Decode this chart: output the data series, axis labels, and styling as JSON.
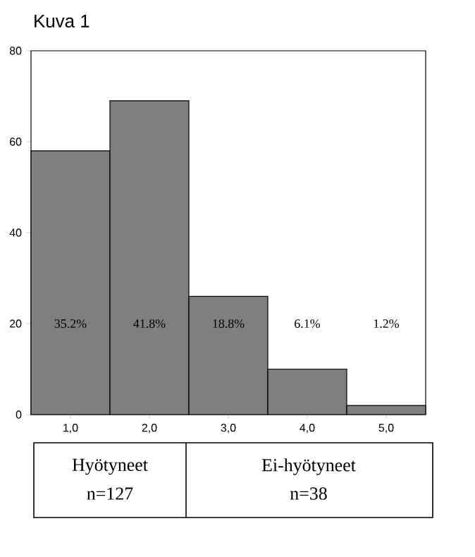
{
  "chart_data": {
    "type": "histogram",
    "title": "Kuva 1",
    "bins": [
      0.5,
      1.5,
      2.5,
      3.5,
      4.5,
      5.5
    ],
    "values": [
      58,
      69,
      26,
      10,
      2
    ],
    "color": "#7f7f7f",
    "xlim": [
      0.5,
      5.5
    ],
    "ylim": [
      0,
      80
    ],
    "xticks": [
      {
        "value": 1,
        "label": "1,0"
      },
      {
        "value": 2,
        "label": "2,0"
      },
      {
        "value": 3,
        "label": "3,0"
      },
      {
        "value": 4,
        "label": "4,0"
      },
      {
        "value": 5,
        "label": "5,0"
      }
    ],
    "yticks": [
      0,
      20,
      40,
      60,
      80
    ],
    "annotations": [
      "35.2%",
      "41.8%",
      "18.8%",
      "6.1%",
      "1.2%",
      "Hyötyneet",
      "n=127",
      "Ei-hyötyneet",
      "n=38"
    ]
  }
}
